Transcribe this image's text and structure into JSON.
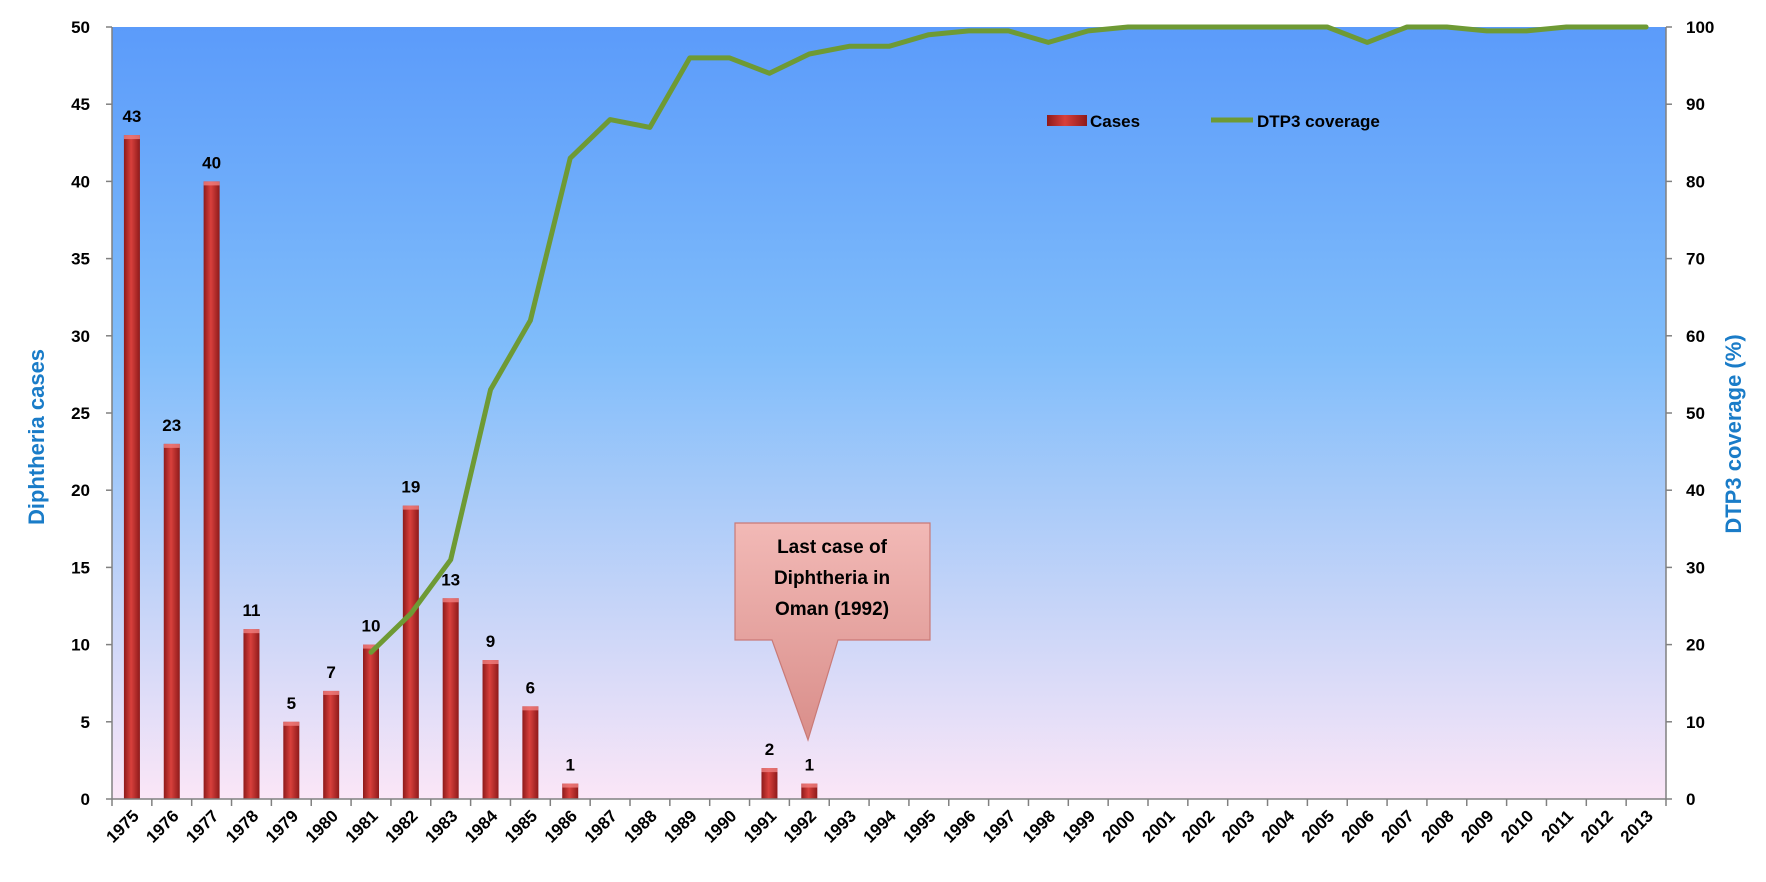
{
  "chart_data": {
    "type": "bar",
    "categories": [
      "1975",
      "1976",
      "1977",
      "1978",
      "1979",
      "1980",
      "1981",
      "1982",
      "1983",
      "1984",
      "1985",
      "1986",
      "1987",
      "1988",
      "1989",
      "1990",
      "1991",
      "1992",
      "1993",
      "1994",
      "1995",
      "1996",
      "1997",
      "1998",
      "1999",
      "2000",
      "2001",
      "2002",
      "2003",
      "2004",
      "2005",
      "2006",
      "2007",
      "2008",
      "2009",
      "2010",
      "2011",
      "2012",
      "2013"
    ],
    "series": [
      {
        "name": "Cases",
        "kind": "bar",
        "axis": "left",
        "color": "#c0302e",
        "values": [
          43,
          23,
          40,
          11,
          5,
          7,
          10,
          19,
          13,
          9,
          6,
          1,
          null,
          null,
          null,
          null,
          2,
          1,
          null,
          null,
          null,
          null,
          null,
          null,
          null,
          null,
          null,
          null,
          null,
          null,
          null,
          null,
          null,
          null,
          null,
          null,
          null,
          null,
          null
        ],
        "data_labels": [
          "43",
          "23",
          "40",
          "11",
          "5",
          "7",
          "10",
          "19",
          "13",
          "9",
          "6",
          "1",
          "",
          "",
          "",
          "",
          "2",
          "1",
          "",
          "",
          "",
          "",
          "",
          "",
          "",
          "",
          "",
          "",
          "",
          "",
          "",
          "",
          "",
          "",
          "",
          "",
          "",
          "",
          ""
        ]
      },
      {
        "name": "DTP3 coverage",
        "kind": "line",
        "axis": "right",
        "color": "#6e9a34",
        "values": [
          null,
          null,
          null,
          null,
          null,
          null,
          19,
          24,
          31,
          53,
          62,
          83,
          88,
          87,
          96,
          96,
          94,
          96.5,
          97.5,
          97.5,
          99,
          99.5,
          99.5,
          98,
          99.5,
          100,
          100,
          100,
          100,
          100,
          100,
          98,
          100,
          100,
          99.5,
          99.5,
          100,
          100,
          100
        ]
      }
    ],
    "y_left": {
      "label": "Diphtheria cases",
      "min": 0,
      "max": 50,
      "ticks": [
        "0",
        "5",
        "10",
        "15",
        "20",
        "25",
        "30",
        "35",
        "40",
        "45",
        "50"
      ]
    },
    "y_right": {
      "label": "DTP3 coverage (%)",
      "min": 0,
      "max": 100,
      "ticks": [
        "0",
        "10",
        "20",
        "30",
        "40",
        "50",
        "60",
        "70",
        "80",
        "90",
        "100"
      ]
    },
    "legend": {
      "position": "top-right",
      "items": [
        "Cases",
        "DTP3 coverage"
      ]
    },
    "annotation": {
      "lines": [
        "Last case of",
        "Diphtheria in",
        "Oman (1992)"
      ],
      "points_to": "1992"
    },
    "grid": false,
    "background_gradient": [
      "#5b9bfa",
      "#80bdfa",
      "#fbe6f7"
    ]
  }
}
